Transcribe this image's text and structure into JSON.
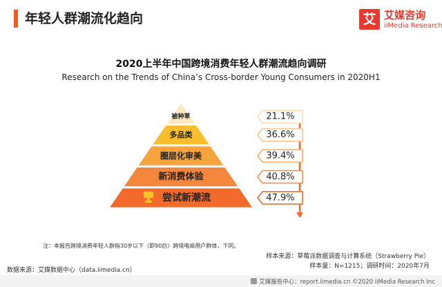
{
  "header": {
    "title": "年轻人群潮流化趋向"
  },
  "logo": {
    "box_char": "艾",
    "cn": "艾媒咨询",
    "en": "iiMedia Research"
  },
  "chart_data": {
    "type": "pyramid",
    "title": "2020上半年中国跨境消费年轻人群潮流趋向调研",
    "subtitle": "Research on the Trends of China’s Cross-border Young Consumers in 2020H1",
    "unit": "%",
    "categories": [
      "被种草",
      "多品类",
      "圈层化审美",
      "新消费体验",
      "尝试新潮流"
    ],
    "values": [
      21.1,
      36.6,
      39.4,
      40.8,
      47.9
    ],
    "value_labels": [
      "21.1%",
      "36.6%",
      "39.4%",
      "40.8%",
      "47.9%"
    ],
    "tier_colors": [
      "#fde8bf",
      "#f9be2e",
      "#f5a33d",
      "#f4873b",
      "#f36a2d"
    ],
    "callout_colors": [
      "#fcdcb6",
      "#f9c58d",
      "#f7ac67",
      "#f48e48",
      "#f16a2b"
    ]
  },
  "note": "注：本报告跨境消费年轻人群指30岁以下（即90后）跨境电商用户群体，下同。",
  "source": {
    "sample": "样本来源：草莓派数据调查与计算系统（Strawberry Pie）",
    "size": "样本量：N=1215；调研时间：2020年7月",
    "data": "数据来源：艾媒数据中心（data.iimedia.cn）"
  },
  "footer": "艾媒报告中心：report.iimedia.cn  ©2020  iiMedia Research  Inc"
}
